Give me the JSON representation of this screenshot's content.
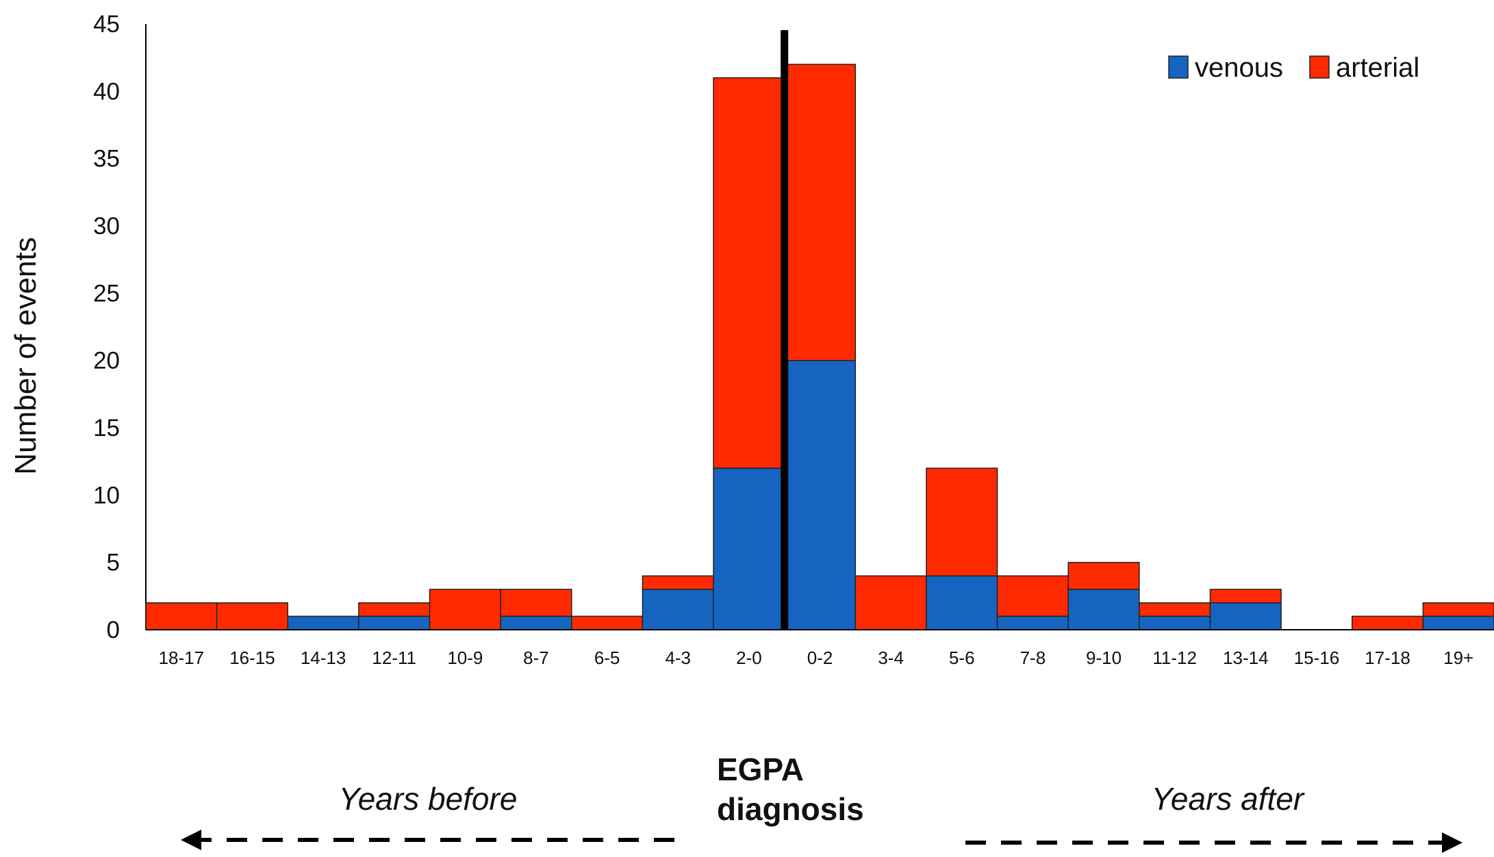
{
  "chart_data": {
    "type": "bar",
    "stacked": true,
    "categories": [
      "18-17",
      "16-15",
      "14-13",
      "12-11",
      "10-9",
      "8-7",
      "6-5",
      "4-3",
      "2-0",
      "0-2",
      "3-4",
      "5-6",
      "7-8",
      "9-10",
      "11-12",
      "13-14",
      "15-16",
      "17-18",
      "19+"
    ],
    "series": [
      {
        "name": "venous",
        "color": "#1565C0",
        "values": [
          0,
          0,
          1,
          1,
          0,
          1,
          0,
          3,
          12,
          20,
          0,
          4,
          1,
          3,
          1,
          2,
          0,
          0,
          1
        ]
      },
      {
        "name": "arterial",
        "color": "#FF2A00",
        "values": [
          2,
          2,
          0,
          1,
          3,
          2,
          1,
          1,
          29,
          22,
          4,
          8,
          3,
          2,
          1,
          1,
          0,
          1,
          1
        ]
      }
    ],
    "ylabel": "Number of events",
    "xlabel": "",
    "ylim": [
      0,
      45
    ],
    "yticks": [
      0,
      5,
      10,
      15,
      20,
      25,
      30,
      35,
      40,
      45
    ],
    "grid": false,
    "legend_position": "top-right",
    "diagnosis_marker": {
      "label_line1": "EGPA",
      "label_line2": "diagnosis",
      "between_categories": [
        "2-0",
        "0-2"
      ]
    },
    "period_labels": {
      "before": "Years before",
      "after": "Years after"
    }
  }
}
